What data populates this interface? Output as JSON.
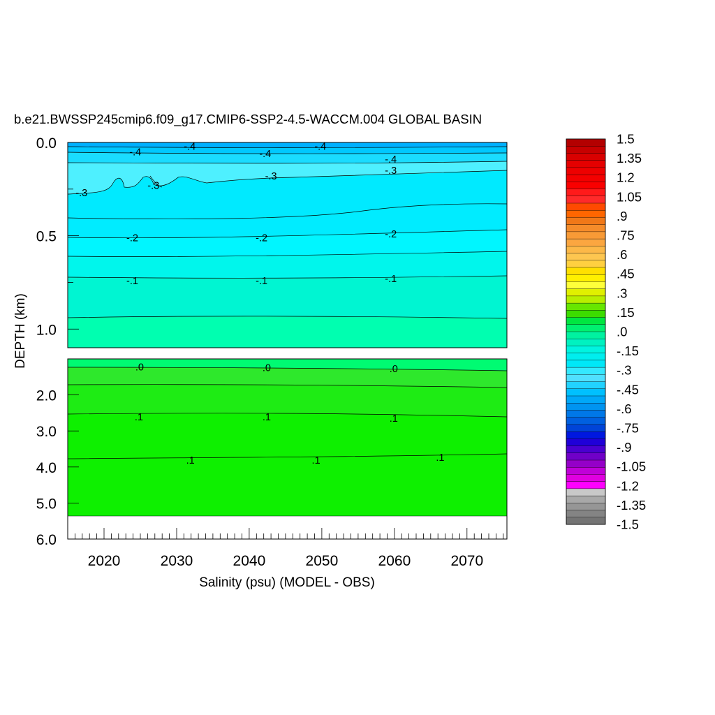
{
  "chart_data": {
    "type": "heatmap",
    "title": "b.e21.BWSSP245cmip6.f09_g17.CMIP6-SSP2-4.5-WACCM.004 GLOBAL BASIN",
    "xlabel": "Salinity (psu) (MODEL - OBS)",
    "ylabel": "DEPTH (km)",
    "x_ticks": [
      "2020",
      "2030",
      "2040",
      "2050",
      "2060",
      "2070"
    ],
    "xlim": [
      2015,
      2075.5
    ],
    "upper_panel": {
      "ylim": [
        0.0,
        1.1
      ],
      "y_ticks": [
        "0.0",
        "0.5",
        "1.0"
      ],
      "contour_labels": [
        {
          "text": "-.4",
          "x": 2024.3,
          "y": 0.05
        },
        {
          "text": "-.4",
          "x": 2031.8,
          "y": 0.02
        },
        {
          "text": "-.4",
          "x": 2042.2,
          "y": 0.06
        },
        {
          "text": "-.4",
          "x": 2049.8,
          "y": 0.02
        },
        {
          "text": "-.4",
          "x": 2059.5,
          "y": 0.09
        },
        {
          "text": "-.3",
          "x": 2043.0,
          "y": 0.18
        },
        {
          "text": "-.3",
          "x": 2059.5,
          "y": 0.15
        },
        {
          "text": "-.3",
          "x": 2026.8,
          "y": 0.23
        },
        {
          "text": "-.3",
          "x": 2016.9,
          "y": 0.27
        },
        {
          "text": "-.2",
          "x": 2023.9,
          "y": 0.51
        },
        {
          "text": "-.2",
          "x": 2041.7,
          "y": 0.51
        },
        {
          "text": "-.2",
          "x": 2059.5,
          "y": 0.49
        },
        {
          "text": "-.1",
          "x": 2023.9,
          "y": 0.74
        },
        {
          "text": "-.1",
          "x": 2041.7,
          "y": 0.74
        },
        {
          "text": "-.1",
          "x": 2059.5,
          "y": 0.73
        }
      ]
    },
    "lower_panel": {
      "ylim": [
        1.0,
        6.0
      ],
      "y_ticks": [
        "2.0",
        "3.0",
        "4.0",
        "5.0",
        "6.0"
      ],
      "contour_labels": [
        {
          "text": ".0",
          "x": 2024.9,
          "y": 1.22
        },
        {
          "text": ".0",
          "x": 2042.4,
          "y": 1.24
        },
        {
          "text": ".0",
          "x": 2059.9,
          "y": 1.27
        },
        {
          "text": ".1",
          "x": 2024.8,
          "y": 2.61
        },
        {
          "text": ".1",
          "x": 2042.4,
          "y": 2.61
        },
        {
          "text": ".1",
          "x": 2059.9,
          "y": 2.65
        },
        {
          "text": ".1",
          "x": 2031.9,
          "y": 3.81
        },
        {
          "text": ".1",
          "x": 2049.2,
          "y": 3.81
        },
        {
          "text": ".1",
          "x": 2066.3,
          "y": 3.73
        }
      ]
    },
    "colorbar": {
      "range": [
        -1.5,
        1.5
      ],
      "labels": [
        "1.5",
        "1.35",
        "1.2",
        "1.05",
        ".9",
        ".75",
        ".6",
        ".45",
        ".3",
        ".15",
        ".0",
        "-.15",
        "-.3",
        "-.45",
        "-.6",
        "-.75",
        "-.9",
        "-1.05",
        "-1.2",
        "-1.35",
        "-1.5"
      ],
      "colors": [
        "#b30000",
        "#c70000",
        "#d90000",
        "#e50000",
        "#ee0000",
        "#f40000",
        "#fa0000",
        "#ff1a1a",
        "#ff2a2a",
        "#ff4a00",
        "#ff6600",
        "#f07818",
        "#f58c2a",
        "#f89a36",
        "#fba640",
        "#fcb848",
        "#fdc650",
        "#ffd040",
        "#ffe000",
        "#fff000",
        "#ffff3a",
        "#e0f000",
        "#b8ee00",
        "#66e600",
        "#3cdc00",
        "#00e640",
        "#00f070",
        "#00f2a0",
        "#00f2c0",
        "#00f4e0",
        "#00eeee",
        "#00e8f8",
        "#35e8ff",
        "#50e0ff",
        "#22d2ff",
        "#00c0ff",
        "#00a8f8",
        "#0094f0",
        "#0078e8",
        "#0060e0",
        "#0044d8",
        "#0018e0",
        "#2000d8",
        "#4a00d0",
        "#7000c8",
        "#9500c8",
        "#c000d8",
        "#e000e0",
        "#ff00ff",
        "#c8c8c8",
        "#a8a8a8",
        "#969696",
        "#848484",
        "#747474"
      ]
    }
  }
}
